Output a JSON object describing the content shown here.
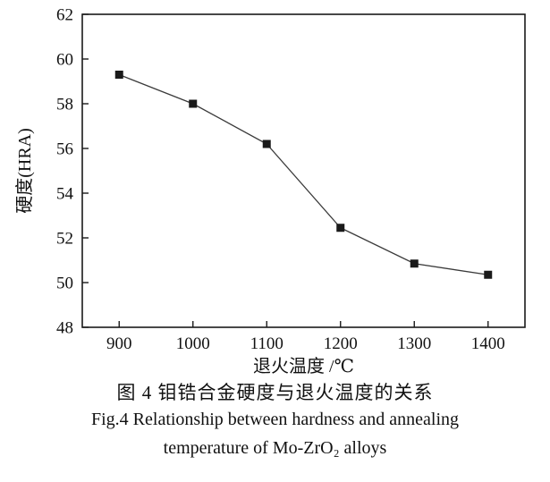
{
  "chart_data": {
    "type": "line",
    "title": "",
    "xlabel": "退火温度 /℃",
    "ylabel": "硬度(HRA)",
    "x": [
      900,
      1000,
      1100,
      1200,
      1300,
      1400
    ],
    "y": [
      59.3,
      58.0,
      56.2,
      52.45,
      50.85,
      50.35
    ],
    "x_ticks": [
      900,
      1000,
      1100,
      1200,
      1300,
      1400
    ],
    "y_ticks": [
      48,
      50,
      52,
      54,
      56,
      58,
      60,
      62
    ],
    "xlim": [
      850,
      1450
    ],
    "ylim": [
      48,
      62
    ],
    "grid": false,
    "legend": "none",
    "marker": "square",
    "line_color": "#3a3a3a",
    "marker_color": "#1a1a1a",
    "axis_color": "#1a1a1a"
  },
  "caption": {
    "line1_zh": "图 4  钼锆合金硬度与退火温度的关系",
    "line2_en": "Fig.4  Relationship between hardness and annealing",
    "line3_en": "temperature of Mo-ZrO₂ alloys"
  }
}
